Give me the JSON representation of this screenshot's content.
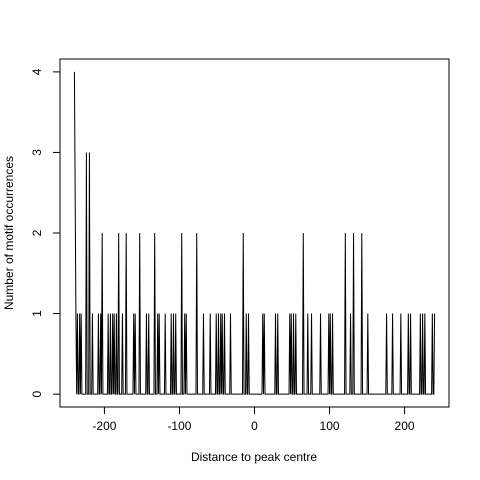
{
  "chart_data": {
    "type": "line",
    "xlabel": "Distance to peak centre",
    "ylabel": "Number of motif occurrences",
    "xlim": [
      -259.2,
      259.2
    ],
    "xticks": [
      -200,
      -100,
      0,
      100,
      200
    ],
    "ylim": [
      -0.16,
      4.16
    ],
    "yticks": [
      0,
      1,
      2,
      3,
      4
    ],
    "grid": false,
    "series": [
      {
        "color": "#000000",
        "x": [
          -240,
          -238,
          -237,
          -236,
          -235,
          -234,
          -233,
          -232,
          -231,
          -230,
          -225,
          -224,
          -223,
          -221,
          -220,
          -219,
          -217,
          -216,
          -215,
          -209,
          -208,
          -207,
          -206,
          -205,
          -204,
          -203,
          -202,
          -196,
          -195,
          -194,
          -193,
          -192,
          -191,
          -190,
          -189,
          -188,
          -187,
          -186,
          -185,
          -184,
          -183,
          -182,
          -181,
          -180,
          -177,
          -176,
          -175,
          -172,
          -171,
          -170,
          -162,
          -161,
          -160,
          -159,
          -158,
          -154,
          -153,
          -152,
          -145,
          -144,
          -143,
          -142,
          -141,
          -140,
          -134,
          -133,
          -132,
          -130,
          -129,
          -128,
          -127,
          -126,
          -120,
          -119,
          -118,
          -112,
          -111,
          -110,
          -109,
          -108,
          -107,
          -106,
          -105,
          -104,
          -98,
          -97,
          -96,
          -94,
          -93,
          -92,
          -91,
          -90,
          -78,
          -77,
          -76,
          -69,
          -68,
          -67,
          -60,
          -59,
          -58,
          -52,
          -51,
          -50,
          -49,
          -48,
          -47,
          -46,
          -45,
          -44,
          -43,
          -42,
          -41,
          -40,
          -39,
          -33,
          -32,
          -31,
          -16,
          -15,
          -14,
          -12,
          -11,
          -10,
          -9,
          -8,
          -7,
          10,
          11,
          12,
          13,
          14,
          27,
          28,
          29,
          30,
          31,
          32,
          46,
          47,
          48,
          49,
          50,
          51,
          52,
          53,
          54,
          55,
          56,
          64,
          65,
          66,
          70,
          71,
          72,
          75,
          76,
          77,
          87,
          88,
          89,
          98,
          99,
          100,
          101,
          102,
          103,
          104,
          105,
          120,
          121,
          122,
          127,
          128,
          129,
          131,
          132,
          133,
          142,
          143,
          144,
          150,
          151,
          152,
          175,
          176,
          177,
          183,
          184,
          185,
          194,
          195,
          196,
          204,
          205,
          206,
          207,
          208,
          209,
          220,
          221,
          222,
          223,
          224,
          225,
          226,
          227,
          228,
          236,
          237,
          238,
          239,
          240
        ],
        "values": [
          4,
          1,
          0,
          1,
          0,
          0,
          1,
          0,
          1,
          0,
          0,
          3,
          0,
          0,
          3,
          0,
          0,
          1,
          0,
          0,
          1,
          0,
          0,
          1,
          0,
          2,
          0,
          0,
          1,
          0,
          0,
          1,
          0,
          0,
          1,
          0,
          1,
          0,
          0,
          1,
          0,
          0,
          2,
          0,
          0,
          1,
          0,
          0,
          2,
          0,
          0,
          1,
          0,
          1,
          0,
          0,
          2,
          0,
          0,
          1,
          0,
          0,
          1,
          0,
          0,
          2,
          0,
          0,
          1,
          0,
          1,
          0,
          0,
          1,
          0,
          0,
          1,
          0,
          0,
          1,
          0,
          0,
          1,
          0,
          0,
          2,
          0,
          0,
          1,
          0,
          1,
          0,
          0,
          2,
          0,
          0,
          1,
          0,
          0,
          1,
          0,
          0,
          1,
          0,
          0,
          1,
          0,
          0,
          1,
          0,
          1,
          0,
          0,
          1,
          0,
          0,
          1,
          0,
          0,
          2,
          0,
          0,
          1,
          0,
          0,
          1,
          0,
          0,
          1,
          0,
          1,
          0,
          0,
          1,
          0,
          0,
          1,
          0,
          0,
          1,
          0,
          1,
          0,
          0,
          1,
          0,
          0,
          1,
          0,
          0,
          2,
          0,
          0,
          1,
          0,
          0,
          1,
          0,
          0,
          1,
          0,
          0,
          1,
          0,
          1,
          0,
          0,
          1,
          0,
          0,
          2,
          0,
          0,
          1,
          0,
          0,
          2,
          0,
          0,
          2,
          0,
          0,
          1,
          0,
          0,
          1,
          0,
          0,
          1,
          0,
          0,
          1,
          0,
          0,
          1,
          0,
          0,
          1,
          0,
          0,
          1,
          0,
          0,
          1,
          0,
          0,
          1,
          0,
          0,
          1,
          0,
          0,
          1
        ]
      }
    ]
  }
}
